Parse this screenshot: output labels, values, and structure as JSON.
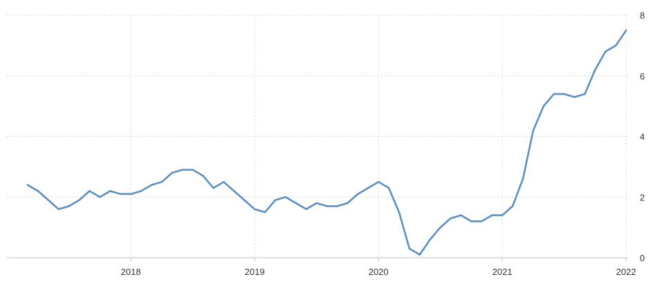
{
  "chart_data": {
    "type": "line",
    "title": "",
    "xlabel": "",
    "ylabel": "",
    "xlim": [
      "2017-03",
      "2022-01"
    ],
    "ylim": [
      0,
      8
    ],
    "y_ticks": [
      0,
      2,
      4,
      6,
      8
    ],
    "y_axis_side": "right",
    "x_ticks": [
      "2018",
      "2019",
      "2020",
      "2021",
      "2022"
    ],
    "x_tick_dates": [
      "2018-01",
      "2019-01",
      "2020-01",
      "2021-01",
      "2022-01"
    ],
    "grid": true,
    "legend": "none",
    "line_color": "#5b8fc2",
    "series": [
      {
        "x": [
          "2017-03",
          "2017-04",
          "2017-05",
          "2017-06",
          "2017-07",
          "2017-08",
          "2017-09",
          "2017-10",
          "2017-11",
          "2017-12",
          "2018-01",
          "2018-02",
          "2018-03",
          "2018-04",
          "2018-05",
          "2018-06",
          "2018-07",
          "2018-08",
          "2018-09",
          "2018-10",
          "2018-11",
          "2018-12",
          "2019-01",
          "2019-02",
          "2019-03",
          "2019-04",
          "2019-05",
          "2019-06",
          "2019-07",
          "2019-08",
          "2019-09",
          "2019-10",
          "2019-11",
          "2019-12",
          "2020-01",
          "2020-02",
          "2020-03",
          "2020-04",
          "2020-05",
          "2020-06",
          "2020-07",
          "2020-08",
          "2020-09",
          "2020-10",
          "2020-11",
          "2020-12",
          "2021-01",
          "2021-02",
          "2021-03",
          "2021-04",
          "2021-05",
          "2021-06",
          "2021-07",
          "2021-08",
          "2021-09",
          "2021-10",
          "2021-11",
          "2021-12",
          "2022-01"
        ],
        "values": [
          2.4,
          2.2,
          1.9,
          1.6,
          1.7,
          1.9,
          2.2,
          2.0,
          2.2,
          2.1,
          2.1,
          2.2,
          2.4,
          2.5,
          2.8,
          2.9,
          2.9,
          2.7,
          2.3,
          2.5,
          2.2,
          1.9,
          1.6,
          1.5,
          1.9,
          2.0,
          1.8,
          1.6,
          1.8,
          1.7,
          1.7,
          1.8,
          2.1,
          2.3,
          2.5,
          2.3,
          1.5,
          0.3,
          0.1,
          0.6,
          1.0,
          1.3,
          1.4,
          1.2,
          1.2,
          1.4,
          1.4,
          1.7,
          2.6,
          4.2,
          5.0,
          5.4,
          5.4,
          5.3,
          5.4,
          6.2,
          6.8,
          7.0,
          7.5
        ]
      }
    ]
  }
}
